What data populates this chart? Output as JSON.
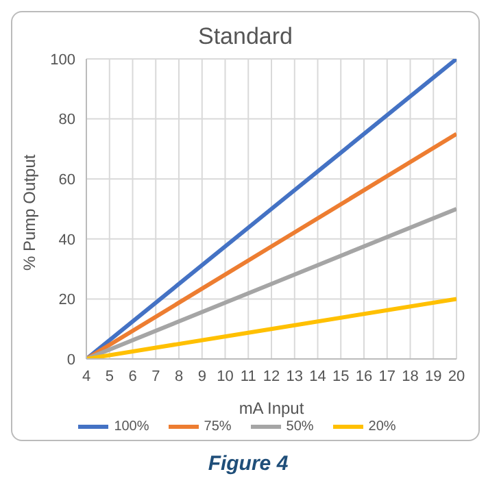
{
  "chart_data": {
    "type": "line",
    "title": "Standard",
    "xlabel": "mA Input",
    "ylabel": "% Pump Output",
    "series": [
      {
        "name": "100%",
        "color": "#4472c4",
        "x": [
          4,
          12,
          20
        ],
        "values": [
          0,
          50,
          100
        ]
      },
      {
        "name": "75%",
        "color": "#ed7d31",
        "x": [
          4,
          12,
          20
        ],
        "values": [
          0,
          37.5,
          75
        ]
      },
      {
        "name": "50%",
        "color": "#a5a5a5",
        "x": [
          4,
          12,
          20
        ],
        "values": [
          0,
          25,
          50
        ]
      },
      {
        "name": "20%",
        "color": "#ffc000",
        "x": [
          4,
          12,
          20
        ],
        "values": [
          0,
          10,
          20
        ]
      }
    ],
    "xlim": [
      4,
      20
    ],
    "xticks": [
      4,
      5,
      6,
      7,
      8,
      9,
      10,
      11,
      12,
      13,
      14,
      15,
      16,
      17,
      18,
      19,
      20
    ],
    "ylim": [
      0,
      100
    ],
    "yticks": [
      0,
      20,
      40,
      60,
      80,
      100
    ],
    "grid": true,
    "legend": "bottom",
    "marker": "none",
    "line_style": "solid",
    "annotations": [
      "Figure 4"
    ]
  }
}
